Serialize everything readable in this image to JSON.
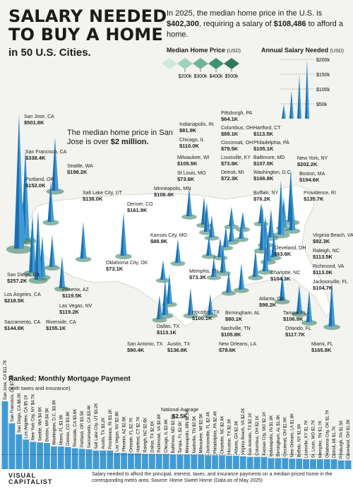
{
  "title_line1": "SALARY NEEDED",
  "title_line2": "TO BUY A HOME",
  "subtitle": "in 50 U.S. Cities.",
  "intro": {
    "part1": "In 2025, the median home price in the U.S. is ",
    "price": "$402,300",
    "part2": ", requiring a salary of ",
    "salary": "$108,486",
    "part3": " to afford a home."
  },
  "legend": {
    "home_price_title": "Median Home Price",
    "home_price_unit": "(USD)",
    "home_price_ticks": [
      "$200k",
      "$300k",
      "$400k",
      "$500k"
    ],
    "salary_title": "Annual Salary Needed",
    "salary_unit": "(USD)",
    "salary_ticks": [
      "$200k",
      "$150k",
      "$100k",
      "$50k"
    ]
  },
  "callout": {
    "part1": "The median home price in San Jose is over ",
    "bold": "$2 million."
  },
  "mortgage_title": "Ranked: Monthly Mortgage Payment",
  "mortgage_subtitle": "(with taxes and insurance)",
  "national_average": {
    "label": "National Average",
    "value": "$2.5K"
  },
  "footnote": "Salary needed to afford the principal, interest, taxes, and insurance payments on a median-priced home in the corresponding metro area. Source: Home Sweet Home (Data as of May 2025)",
  "logo": {
    "line1": "VISUAL",
    "line2": "CAPITALIST"
  },
  "colors": {
    "spike": "#3f9bd6",
    "spike_dark": "#1f6fae",
    "legend_green": "#2f7a5a",
    "bar": "#3f9bd6",
    "map": "#ffffff"
  },
  "chart_data": [
    {
      "type": "scatter",
      "title": "Annual Salary Needed",
      "series": [
        {
          "city": "San Jose, CA",
          "salary": 501.8
        },
        {
          "city": "San Francisco, CA",
          "salary": 338.4
        },
        {
          "city": "Seattle, WA",
          "salary": 198.2
        },
        {
          "city": "Portland, OR",
          "salary": 152.0
        },
        {
          "city": "Salt Lake City, UT",
          "salary": 138.0
        },
        {
          "city": "Denver, CO",
          "salary": 161.9
        },
        {
          "city": "Minneapolis, MN",
          "salary": 106.4
        },
        {
          "city": "Indianapolis, IN",
          "salary": 81.9
        },
        {
          "city": "Chicago, IL",
          "salary": 110.0
        },
        {
          "city": "Milwaukee, WI",
          "salary": 105.5
        },
        {
          "city": "St Louis, MO",
          "salary": 73.6
        },
        {
          "city": "Pittsburgh, PA",
          "salary": 64.1
        },
        {
          "city": "Columbus, OH",
          "salary": 89.1
        },
        {
          "city": "Cincinnati, OH",
          "salary": 79.5
        },
        {
          "city": "Louisville, KY",
          "salary": 73.8
        },
        {
          "city": "Detroit, MI",
          "salary": 72.3
        },
        {
          "city": "Hartford, CT",
          "salary": 113.5
        },
        {
          "city": "Philadelphia, PA",
          "salary": 105.1
        },
        {
          "city": "Baltimore, MD",
          "salary": 107.0
        },
        {
          "city": "Washington, D.C.",
          "salary": 166.8
        },
        {
          "city": "Buffalo, NY",
          "salary": 76.2
        },
        {
          "city": "New York, NY",
          "salary": 202.2
        },
        {
          "city": "Boston, MA",
          "salary": 194.6
        },
        {
          "city": "Providence, RI",
          "salary": 135.7
        },
        {
          "city": "Kansas City, MO",
          "salary": 88.9
        },
        {
          "city": "Oklahoma City, OK",
          "salary": 73.1
        },
        {
          "city": "Memphis, TN",
          "salary": 73.3
        },
        {
          "city": "Cleveland, OH",
          "salary": 63.6
        },
        {
          "city": "Virginia Beach, VA",
          "salary": 92.3
        },
        {
          "city": "Raleigh, NC",
          "salary": 113.5
        },
        {
          "city": "Richmond, VA",
          "salary": 113.0
        },
        {
          "city": "Charlotte, NC",
          "salary": 104.3
        },
        {
          "city": "Jacksonville, FL",
          "salary": 104.7
        },
        {
          "city": "San Diego, CA",
          "salary": 257.2
        },
        {
          "city": "Los Angeles, CA",
          "salary": 218.5
        },
        {
          "city": "Phoenix, AZ",
          "salary": 119.5
        },
        {
          "city": "Las Vegas, NV",
          "salary": 119.2
        },
        {
          "city": "Sacramento, CA",
          "salary": 144.8
        },
        {
          "city": "Riverside, CA",
          "salary": 155.1
        },
        {
          "city": "Houston, TX",
          "salary": 100.1
        },
        {
          "city": "Dallas, TX",
          "salary": 113.1
        },
        {
          "city": "Atlanta, GA",
          "salary": 98.2
        },
        {
          "city": "Birmingham, AL",
          "salary": 80.1
        },
        {
          "city": "Tampa, FL",
          "salary": 106.9
        },
        {
          "city": "Nashville, TN",
          "salary": 105.8
        },
        {
          "city": "San Antonio, TX",
          "salary": 90.4
        },
        {
          "city": "Austin, TX",
          "salary": 136.8
        },
        {
          "city": "New Orleans, LA",
          "salary": 78.6
        },
        {
          "city": "Orlando, FL",
          "salary": 117.7
        },
        {
          "city": "Miami, FL",
          "salary": 165.8
        }
      ]
    },
    {
      "type": "bar",
      "title": "Ranked: Monthly Mortgage Payment",
      "categories": [
        "San Jose, CA",
        "San Francisco, CA",
        "San Diego, CA",
        "Los Angeles, CA",
        "New York City, NY",
        "Seattle, WA",
        "Boston, MA",
        "Washington, D.C.",
        "Miami, FL",
        "Denver, CO",
        "Riverside, CA",
        "Portland, OR",
        "Sacramento, CA",
        "Salt Lake City, UT",
        "Austin, TX",
        "Providence, RI",
        "Las Vegas, NV",
        "Phoenix, AZ",
        "Orlando, FL",
        "Hartford, CT",
        "Raleigh, NC",
        "Dallas, TX",
        "Richmond, VA",
        "Chicago, IL",
        "Baltimore, MD",
        "Tampa, FL",
        "Minneapolis, MN",
        "Nashville, TN",
        "Milwaukee, WI",
        "Jacksonville, FL",
        "Philadelphia, PA",
        "Charlotte, NC",
        "Houston, TX",
        "Atlanta, GA",
        "Virginia Beach, VA",
        "San Antonio, TX",
        "Columbus, OH",
        "Kansas City, MO",
        "Indianapolis, IN",
        "Birmingham, AL",
        "Cincinnati, OH",
        "New Orleans, LA",
        "Buffalo, NY",
        "Louisville, KY",
        "St. Louis, MO",
        "Memphis, TN",
        "Oklahoma City, OK",
        "Detroit, MI",
        "Pittsburgh, PA",
        "Cleveland, OH"
      ],
      "values": [
        11.7,
        7.9,
        6.0,
        5.1,
        4.7,
        4.6,
        4.5,
        3.9,
        3.9,
        3.8,
        3.6,
        3.5,
        3.4,
        3.2,
        3.2,
        3.2,
        2.8,
        2.8,
        2.7,
        2.7,
        2.6,
        2.6,
        2.6,
        2.6,
        2.5,
        2.5,
        2.5,
        2.5,
        2.5,
        2.4,
        2.4,
        2.4,
        2.3,
        2.3,
        2.2,
        2.1,
        2.1,
        2.1,
        1.9,
        1.9,
        1.9,
        1.8,
        1.8,
        1.7,
        1.7,
        1.7,
        1.7,
        1.7,
        1.5,
        1.5
      ],
      "value_labels": [
        "$11.7K",
        "$7.9K",
        "$6.0K",
        "$5.1K",
        "$4.7K",
        "$4.6K",
        "$4.5K",
        "$3.9K",
        "$3.9K",
        "$3.8K",
        "$3.6K",
        "$3.5K",
        "$3.4K",
        "$3.2K",
        "$3.2K",
        "$3.2K",
        "$2.8K",
        "$2.8K",
        "$2.7K",
        "$2.7K",
        "$2.6K",
        "$2.6K",
        "$2.6K",
        "$2.6K",
        "$2.5K",
        "$2.5K",
        "$2.5K",
        "$2.5K",
        "$2.5K",
        "$2.4K",
        "$2.4K",
        "$2.4K",
        "$2.3K",
        "$2.3K",
        "$2.2K",
        "$2.1K",
        "$2.1K",
        "$2.1K",
        "$1.9K",
        "$1.9K",
        "$1.9K",
        "$1.8K",
        "$1.8K",
        "$1.7K",
        "$1.7K",
        "$1.7K",
        "$1.7K",
        "$1.7K",
        "$1.5K",
        "$1.5K"
      ],
      "average": 2.5
    }
  ]
}
